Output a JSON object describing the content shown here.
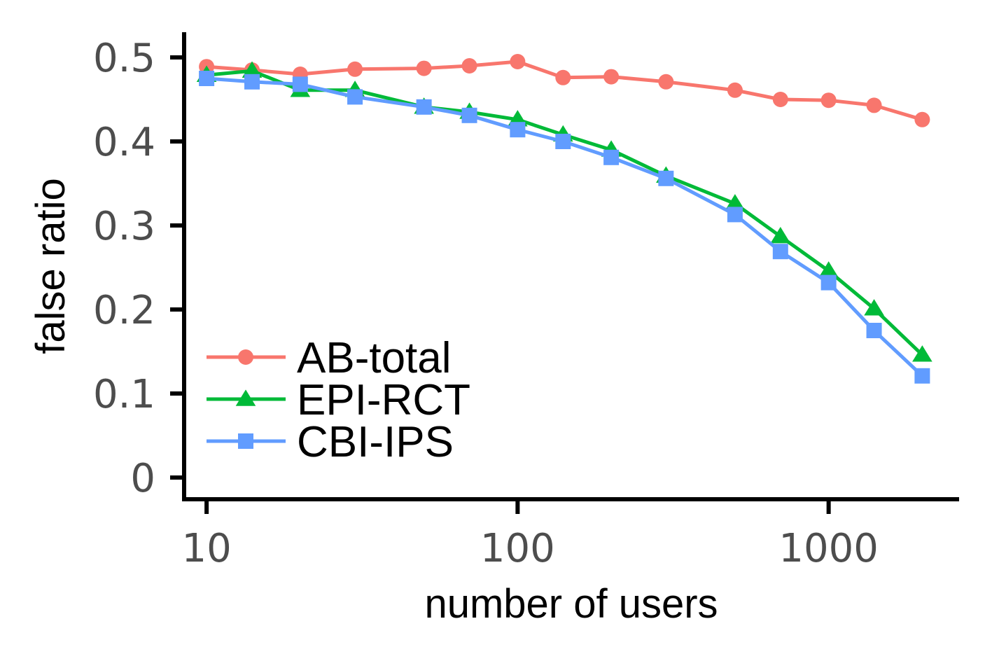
{
  "chart_data": {
    "type": "line",
    "title": "",
    "xlabel": "number of users",
    "ylabel": "false ratio",
    "xscale": "log",
    "xlim": [
      8.6,
      2600
    ],
    "ylim": [
      -0.025,
      0.53
    ],
    "xticks": [
      10,
      100,
      1000
    ],
    "xtick_labels": [
      "10",
      "100",
      "1000"
    ],
    "yticks": [
      0,
      0.1,
      0.2,
      0.3,
      0.4,
      0.5
    ],
    "ytick_labels": [
      "0",
      "0.1",
      "0.2",
      "0.3",
      "0.4",
      "0.5"
    ],
    "grid": false,
    "legend_position": "bottom-left",
    "x": [
      10,
      14,
      20,
      30,
      50,
      70,
      100,
      140,
      200,
      300,
      500,
      700,
      1000,
      1400,
      2000
    ],
    "series": [
      {
        "name": "AB-total",
        "color": "#F8766D",
        "marker": "circle",
        "values": [
          0.489,
          0.485,
          0.48,
          0.486,
          0.487,
          0.49,
          0.495,
          0.476,
          0.477,
          0.471,
          0.461,
          0.45,
          0.449,
          0.443,
          0.426
        ]
      },
      {
        "name": "EPI-RCT",
        "color": "#00BA38",
        "marker": "triangle",
        "values": [
          0.479,
          0.484,
          0.461,
          0.461,
          0.441,
          0.435,
          0.426,
          0.408,
          0.39,
          0.359,
          0.326,
          0.287,
          0.246,
          0.201,
          0.146
        ]
      },
      {
        "name": "CBI-IPS",
        "color": "#619CFF",
        "marker": "square",
        "values": [
          0.475,
          0.471,
          0.468,
          0.453,
          0.441,
          0.431,
          0.414,
          0.4,
          0.381,
          0.356,
          0.313,
          0.269,
          0.232,
          0.175,
          0.121
        ]
      }
    ]
  }
}
